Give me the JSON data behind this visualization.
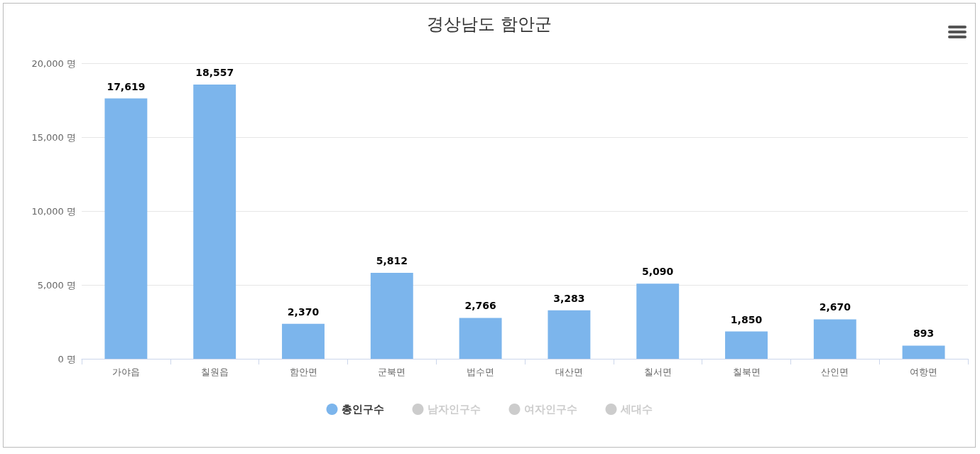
{
  "chart_data": {
    "type": "bar",
    "title": "경상남도 함안군",
    "categories": [
      "가야읍",
      "칠원읍",
      "함안면",
      "군북면",
      "법수면",
      "대산면",
      "칠서면",
      "칠북면",
      "산인면",
      "여항면"
    ],
    "series": [
      {
        "name": "총인구수",
        "color": "#7cb5ec",
        "values": [
          17619,
          18557,
          2370,
          5812,
          2766,
          3283,
          5090,
          1850,
          2670,
          893
        ],
        "value_labels": [
          "17,619",
          "18,557",
          "2,370",
          "5,812",
          "2,766",
          "3,283",
          "5,090",
          "1,850",
          "2,670",
          "893"
        ]
      },
      {
        "name": "남자인구수",
        "color": "#cccccc",
        "values": [
          null,
          null,
          null,
          null,
          null,
          null,
          null,
          null,
          null,
          null
        ]
      },
      {
        "name": "여자인구수",
        "color": "#cccccc",
        "values": [
          null,
          null,
          null,
          null,
          null,
          null,
          null,
          null,
          null,
          null
        ]
      },
      {
        "name": "세대수",
        "color": "#cccccc",
        "values": [
          null,
          null,
          null,
          null,
          null,
          null,
          null,
          null,
          null,
          null
        ]
      }
    ],
    "ylim": [
      0,
      20000
    ],
    "yticks": [
      {
        "value": 0,
        "label": "0 명"
      },
      {
        "value": 5000,
        "label": "5,000 명"
      },
      {
        "value": 10000,
        "label": "10,000 명"
      },
      {
        "value": 15000,
        "label": "15,000 명"
      },
      {
        "value": 20000,
        "label": "20,000 명"
      }
    ],
    "grid": "y",
    "legend": "bottom"
  }
}
